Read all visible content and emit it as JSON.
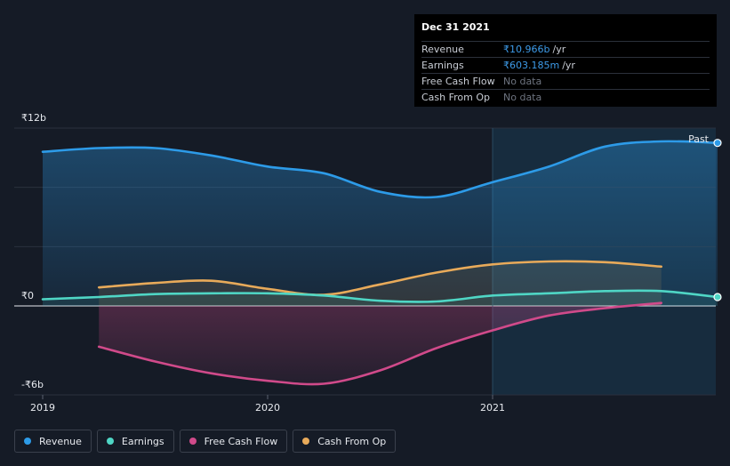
{
  "chart_data": {
    "type": "line",
    "x_range": [
      2018.95,
      2021.95
    ],
    "ylim": [
      -6,
      12
    ],
    "y_ticks": [
      {
        "label": "₹12b",
        "value": 12
      },
      {
        "label": "₹0",
        "value": 0
      },
      {
        "label": "-₹6b",
        "value": -6
      }
    ],
    "x_ticks": [
      {
        "label": "2019",
        "value": 2019
      },
      {
        "label": "2020",
        "value": 2020
      },
      {
        "label": "2021",
        "value": 2021
      }
    ],
    "past_label": "Past",
    "past_start": 2021.0,
    "series": [
      {
        "name": "Revenue",
        "color": "#2d9be8",
        "fill": true,
        "points": [
          [
            2019.0,
            10.4
          ],
          [
            2019.25,
            10.65
          ],
          [
            2019.5,
            10.65
          ],
          [
            2019.75,
            10.15
          ],
          [
            2020.0,
            9.4
          ],
          [
            2020.25,
            8.95
          ],
          [
            2020.5,
            7.7
          ],
          [
            2020.75,
            7.35
          ],
          [
            2021.0,
            8.35
          ],
          [
            2021.25,
            9.4
          ],
          [
            2021.5,
            10.75
          ],
          [
            2021.75,
            11.1
          ],
          [
            2022.0,
            11.0
          ]
        ]
      },
      {
        "name": "Earnings",
        "color": "#4fd6c5",
        "fill": true,
        "points": [
          [
            2019.0,
            0.45
          ],
          [
            2019.25,
            0.6
          ],
          [
            2019.5,
            0.8
          ],
          [
            2019.75,
            0.85
          ],
          [
            2020.0,
            0.85
          ],
          [
            2020.25,
            0.7
          ],
          [
            2020.5,
            0.35
          ],
          [
            2020.75,
            0.3
          ],
          [
            2021.0,
            0.7
          ],
          [
            2021.25,
            0.85
          ],
          [
            2021.5,
            1.0
          ],
          [
            2021.75,
            1.0
          ],
          [
            2022.0,
            0.6
          ]
        ]
      },
      {
        "name": "Free Cash Flow",
        "color": "#d04a8a",
        "fill": true,
        "points": [
          [
            2019.25,
            -2.75
          ],
          [
            2019.5,
            -3.75
          ],
          [
            2019.75,
            -4.55
          ],
          [
            2020.0,
            -5.05
          ],
          [
            2020.25,
            -5.25
          ],
          [
            2020.5,
            -4.35
          ],
          [
            2020.75,
            -2.85
          ],
          [
            2021.0,
            -1.65
          ],
          [
            2021.25,
            -0.65
          ],
          [
            2021.5,
            -0.15
          ],
          [
            2021.75,
            0.2
          ]
        ]
      },
      {
        "name": "Cash From Op",
        "color": "#e8aa5a",
        "fill": true,
        "points": [
          [
            2019.25,
            1.25
          ],
          [
            2019.5,
            1.55
          ],
          [
            2019.75,
            1.7
          ],
          [
            2020.0,
            1.15
          ],
          [
            2020.25,
            0.75
          ],
          [
            2020.5,
            1.45
          ],
          [
            2020.75,
            2.25
          ],
          [
            2021.0,
            2.8
          ],
          [
            2021.25,
            3.0
          ],
          [
            2021.5,
            2.95
          ],
          [
            2021.75,
            2.65
          ]
        ]
      }
    ]
  },
  "tooltip": {
    "date": "Dec 31 2021",
    "rows": [
      {
        "label": "Revenue",
        "value": "₹10.966b",
        "unit": "/yr",
        "color": "#3d9be9"
      },
      {
        "label": "Earnings",
        "value": "₹603.185m",
        "unit": "/yr",
        "color": "#4fd6c5"
      },
      {
        "label": "Free Cash Flow",
        "value": "No data",
        "unit": ""
      },
      {
        "label": "Cash From Op",
        "value": "No data",
        "unit": ""
      }
    ]
  },
  "legend": [
    {
      "label": "Revenue",
      "color": "#2d9be8"
    },
    {
      "label": "Earnings",
      "color": "#4fd6c5"
    },
    {
      "label": "Free Cash Flow",
      "color": "#d04a8a"
    },
    {
      "label": "Cash From Op",
      "color": "#e8aa5a"
    }
  ]
}
